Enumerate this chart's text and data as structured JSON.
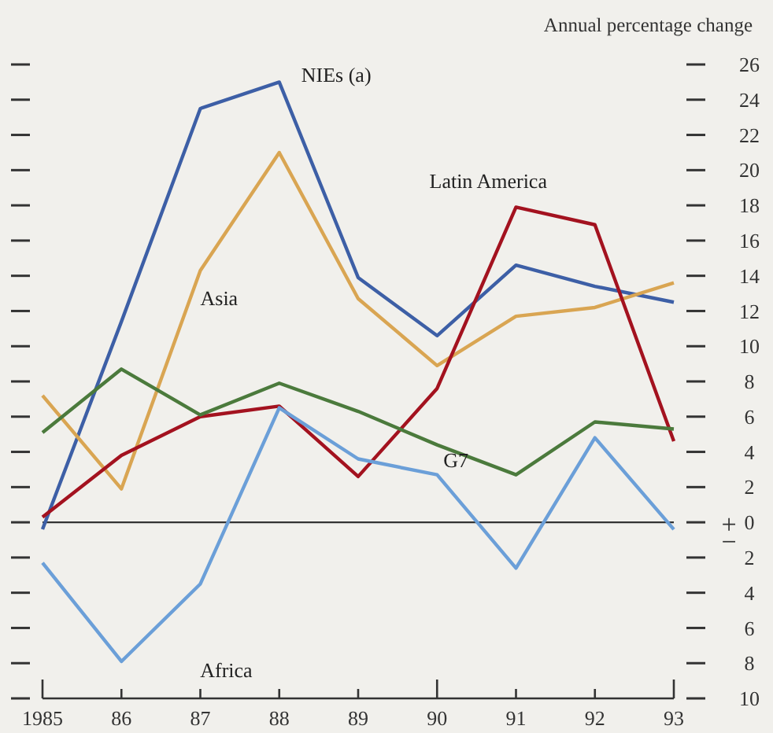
{
  "chart_data": {
    "type": "line",
    "ylabel": "Annual percentage change",
    "x": [
      1985,
      1986,
      1987,
      1988,
      1989,
      1990,
      1991,
      1992,
      1993
    ],
    "xlim": [
      1985,
      1993
    ],
    "xticks": [
      {
        "value": 1985,
        "label": "1985"
      },
      {
        "value": 1986,
        "label": "86"
      },
      {
        "value": 1987,
        "label": "87"
      },
      {
        "value": 1988,
        "label": "88"
      },
      {
        "value": 1989,
        "label": "89"
      },
      {
        "value": 1990,
        "label": "90"
      },
      {
        "value": 1991,
        "label": "91"
      },
      {
        "value": 1992,
        "label": "92"
      },
      {
        "value": 1993,
        "label": "93"
      }
    ],
    "ylim": [
      -10,
      26
    ],
    "yticks": [
      {
        "value": -10,
        "label": "10"
      },
      {
        "value": -8,
        "label": "8"
      },
      {
        "value": -6,
        "label": "6"
      },
      {
        "value": -4,
        "label": "4"
      },
      {
        "value": -2,
        "label": "2"
      },
      0,
      2,
      4,
      6,
      8,
      10,
      12,
      14,
      16,
      18,
      20,
      22,
      24,
      26
    ],
    "ref_lines": [
      {
        "axis": "y",
        "value": 0,
        "color": "#333333"
      }
    ],
    "annotations": [
      "+",
      "−"
    ],
    "grid": false,
    "marker": "none",
    "line_style": "solid",
    "tick_labels": "xy",
    "series": [
      {
        "name": "NIEs (a)",
        "color": "#3d5fa6",
        "values": [
          -0.4,
          11.4,
          23.5,
          25.0,
          13.9,
          10.6,
          14.6,
          13.4,
          12.5
        ]
      },
      {
        "name": "Asia",
        "color": "#d9a552",
        "values": [
          7.2,
          1.9,
          14.3,
          21.0,
          12.7,
          8.9,
          11.7,
          12.2,
          13.6
        ]
      },
      {
        "name": "Latin America",
        "color": "#a3121f",
        "values": [
          0.3,
          3.8,
          6.0,
          6.6,
          2.6,
          7.6,
          17.9,
          16.9,
          4.6
        ]
      },
      {
        "name": "G7",
        "color": "#4b7a3c",
        "values": [
          5.1,
          8.7,
          6.1,
          7.9,
          6.3,
          4.4,
          2.7,
          5.7,
          5.3
        ]
      },
      {
        "name": "Africa",
        "color": "#6b9fd8",
        "values": [
          -2.3,
          -7.9,
          -3.5,
          6.5,
          3.6,
          2.7,
          -2.6,
          4.8,
          -0.4
        ]
      }
    ]
  }
}
